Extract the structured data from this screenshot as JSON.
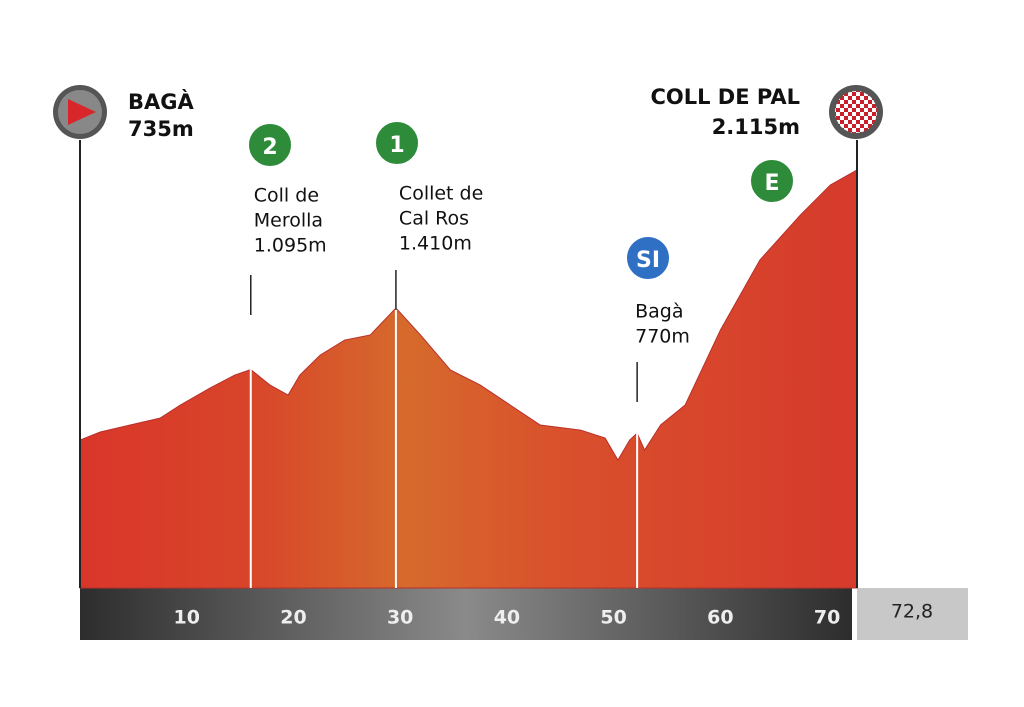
{
  "chart_data": {
    "type": "area",
    "x": [
      0,
      1.9,
      4.7,
      7.5,
      9.4,
      12.2,
      14.5,
      16,
      17.8,
      19.5,
      20.6,
      22.5,
      24.8,
      27.2,
      29.6,
      31.9,
      34.7,
      37.5,
      40.3,
      43.1,
      46.9,
      49.2,
      50.4,
      51.5,
      52.2,
      52.9,
      54.4,
      56.7,
      60,
      63.7,
      67.5,
      70.3,
      72.8
    ],
    "values": [
      735,
      776,
      812,
      847,
      914,
      1001,
      1067,
      1095,
      1016,
      965,
      1067,
      1169,
      1246,
      1272,
      1410,
      1272,
      1093,
      1016,
      914,
      812,
      786,
      745,
      633,
      735,
      770,
      684,
      812,
      914,
      1297,
      1655,
      1885,
      2038,
      2115
    ],
    "xlim": [
      0,
      72.8
    ],
    "xticks": [
      10,
      20,
      30,
      40,
      50,
      60,
      70
    ],
    "distance": {
      "value": 72.8,
      "label": "72,8"
    },
    "start": {
      "x": 0,
      "name": "BAGÀ",
      "elevation": "735m"
    },
    "finish": {
      "x": 72.8,
      "name": "COLL DE PAL",
      "elevation": "2.115m"
    },
    "points": [
      {
        "x": 16,
        "badge": "2",
        "color": "#2e8b3a",
        "label": [
          "Coll de",
          "Merolla",
          "1.095m"
        ]
      },
      {
        "x": 29.6,
        "badge": "1",
        "color": "#2e8b3a",
        "label": [
          "Collet de",
          "Cal Ros",
          "1.410m"
        ]
      },
      {
        "x": 52.2,
        "badge": "SI",
        "color": "#2f6fc4",
        "label": [
          "Bagà",
          "770m"
        ]
      },
      {
        "x": 72.8,
        "badge": "E",
        "color": "#2e8b3a",
        "label": []
      }
    ]
  }
}
